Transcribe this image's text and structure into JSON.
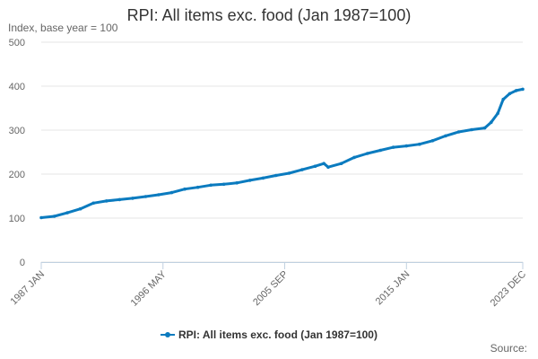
{
  "chart_data": {
    "type": "line",
    "title": "RPI: All items exc. food (Jan 1987=100)",
    "ylabel": "Index, base year = 100",
    "xlabel": "",
    "ylim": [
      0,
      500
    ],
    "yticks": [
      0,
      100,
      200,
      300,
      400,
      500
    ],
    "xlim": [
      "1987 JAN",
      "2023 DEC"
    ],
    "xtick_labels": [
      "1987 JAN",
      "1996 MAY",
      "2005 SEP",
      "2015 JAN",
      "2023 DEC"
    ],
    "grid": true,
    "legend_position": "bottom",
    "series": [
      {
        "name": "RPI: All items exc. food (Jan 1987=100)",
        "color": "#0b7bbf",
        "x": [
          "1987 JAN",
          "1988 JAN",
          "1989 JAN",
          "1990 JAN",
          "1991 JAN",
          "1992 JAN",
          "1993 JAN",
          "1994 JAN",
          "1995 JAN",
          "1996 JAN",
          "1997 JAN",
          "1998 JAN",
          "1999 JAN",
          "2000 JAN",
          "2001 JAN",
          "2002 JAN",
          "2003 JAN",
          "2004 JAN",
          "2005 JAN",
          "2006 JAN",
          "2007 JAN",
          "2008 JAN",
          "2008 SEP",
          "2009 JAN",
          "2010 JAN",
          "2011 JAN",
          "2012 JAN",
          "2013 JAN",
          "2014 JAN",
          "2015 JAN",
          "2016 JAN",
          "2017 JAN",
          "2018 JAN",
          "2019 JAN",
          "2020 JAN",
          "2021 JAN",
          "2021 JUL",
          "2022 JAN",
          "2022 JUN",
          "2022 DEC",
          "2023 JUN",
          "2023 DEC"
        ],
        "values": [
          101,
          104,
          112,
          121,
          134,
          139,
          142,
          145,
          149,
          153,
          158,
          166,
          170,
          175,
          177,
          180,
          186,
          191,
          197,
          202,
          210,
          218,
          224,
          216,
          224,
          238,
          247,
          254,
          261,
          264,
          268,
          276,
          287,
          296,
          301,
          305,
          318,
          338,
          370,
          383,
          390,
          393
        ]
      }
    ]
  },
  "source_label": "Source:"
}
